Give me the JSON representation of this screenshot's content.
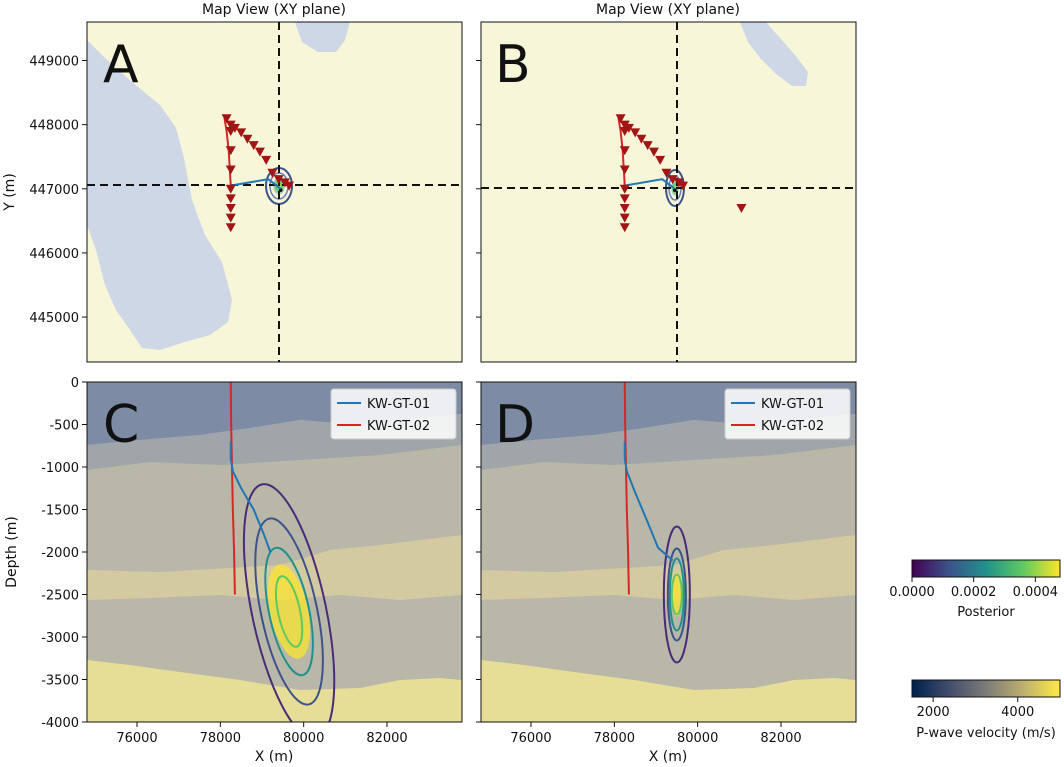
{
  "figure": {
    "panels": [
      {
        "letter": "A",
        "title": "Map View (XY plane)"
      },
      {
        "letter": "B",
        "title": "Map View (XY plane)"
      },
      {
        "letter": "C",
        "title": ""
      },
      {
        "letter": "D",
        "title": ""
      }
    ]
  },
  "colors": {
    "well1": "#1f77b4",
    "well2": "#d62728",
    "station": "#a31515",
    "crosshair": "#111111",
    "map_light": "#f7f6d8",
    "map_blue": "#cdd7e6"
  },
  "chart_data": [
    {
      "panel": "A",
      "type": "scatter",
      "view": "map",
      "title": "Map View (XY plane)",
      "xlabel": "",
      "ylabel": "Y (m)",
      "xlim": [
        74800,
        83800
      ],
      "ylim": [
        444300,
        449600
      ],
      "yticks": [
        445000,
        446000,
        447000,
        448000,
        449000
      ],
      "crosshair": {
        "x": 79450,
        "y": 447000
      },
      "posterior_peak": {
        "x": 79450,
        "y": 446980
      },
      "wells": {
        "KW-GT-01": {
          "x": [
            78250,
            79150,
            79450
          ],
          "y": [
            447050,
            447150,
            447000
          ]
        },
        "KW-GT-02": {
          "x": [
            78250,
            78200,
            78150,
            78100
          ],
          "y": [
            447050,
            447600,
            447900,
            448100
          ]
        }
      },
      "stations": {
        "x": [
          78150,
          78250,
          78350,
          78500,
          78650,
          78800,
          78950,
          79100,
          79250,
          79400,
          79550,
          79650,
          78250,
          78250,
          78250,
          78250,
          78250,
          78250,
          78250,
          78250
        ],
        "y": [
          448100,
          448000,
          447950,
          447880,
          447780,
          447680,
          447580,
          447450,
          447250,
          447150,
          447100,
          447050,
          447900,
          447600,
          447300,
          447000,
          446850,
          446700,
          446550,
          446400
        ]
      }
    },
    {
      "panel": "B",
      "type": "scatter",
      "view": "map",
      "title": "Map View (XY plane)",
      "xlabel": "",
      "ylabel": "",
      "xlim": [
        74800,
        83800
      ],
      "ylim": [
        444300,
        449600
      ],
      "yticks": [
        445000,
        446000,
        447000,
        448000,
        449000
      ],
      "crosshair": {
        "x": 79450,
        "y": 446950
      },
      "posterior_peak": {
        "x": 79450,
        "y": 446980
      },
      "wells": {
        "KW-GT-01": {
          "x": [
            78250,
            79150,
            79450
          ],
          "y": [
            447050,
            447150,
            447000
          ]
        },
        "KW-GT-02": {
          "x": [
            78250,
            78200,
            78150,
            78100
          ],
          "y": [
            447050,
            447600,
            447900,
            448100
          ]
        }
      },
      "stations": {
        "x": [
          78150,
          78250,
          78350,
          78500,
          78650,
          78800,
          78950,
          79100,
          79250,
          79400,
          79550,
          79650,
          78250,
          78250,
          78250,
          78250,
          78250,
          78250,
          78250,
          78250,
          81050
        ],
        "y": [
          448100,
          448000,
          447950,
          447880,
          447780,
          447680,
          447580,
          447450,
          447250,
          447150,
          447100,
          447050,
          447900,
          447600,
          447300,
          447000,
          446850,
          446700,
          446550,
          446400,
          446700
        ]
      }
    },
    {
      "panel": "C",
      "type": "line",
      "view": "section",
      "title": "",
      "xlabel": "X (m)",
      "ylabel": "Depth (m)",
      "xlim": [
        74800,
        83800
      ],
      "ylim": [
        -4000,
        0
      ],
      "xticks": [
        76000,
        78000,
        80000,
        82000
      ],
      "yticks": [
        0,
        -500,
        -1000,
        -1500,
        -2000,
        -2500,
        -3000,
        -3500,
        -4000
      ],
      "legend": [
        "KW-GT-01",
        "KW-GT-02"
      ],
      "series": [
        {
          "name": "KW-GT-01",
          "x": [
            78250,
            78250,
            78300,
            78500,
            78800,
            79050,
            79200
          ],
          "y": [
            -700,
            -900,
            -1050,
            -1250,
            -1500,
            -1800,
            -2000
          ]
        },
        {
          "name": "KW-GT-02",
          "x": [
            78250,
            78260,
            78280,
            78300,
            78330,
            78350
          ],
          "y": [
            0,
            -500,
            -1000,
            -1500,
            -2000,
            -2500
          ]
        }
      ],
      "posterior": {
        "center": [
          79650,
          -2700
        ],
        "tilt_deg": -12,
        "radius_x": [
          250,
          420,
          600,
          800
        ],
        "radius_y": [
          650,
          1000,
          1400,
          1900
        ]
      }
    },
    {
      "panel": "D",
      "type": "line",
      "view": "section",
      "title": "",
      "xlabel": "X (m)",
      "ylabel": "",
      "xlim": [
        74800,
        83800
      ],
      "ylim": [
        -4000,
        0
      ],
      "xticks": [
        76000,
        78000,
        80000,
        82000
      ],
      "yticks": [
        0,
        -500,
        -1000,
        -1500,
        -2000,
        -2500,
        -3000,
        -3500,
        -4000
      ],
      "legend": [
        "KW-GT-01",
        "KW-GT-02"
      ],
      "series": [
        {
          "name": "KW-GT-01",
          "x": [
            78250,
            78250,
            78300,
            78500,
            78800,
            79050,
            79400
          ],
          "y": [
            -700,
            -900,
            -1050,
            -1300,
            -1650,
            -1950,
            -2100
          ]
        },
        {
          "name": "KW-GT-02",
          "x": [
            78250,
            78260,
            78280,
            78300,
            78330,
            78350
          ],
          "y": [
            0,
            -500,
            -1000,
            -1500,
            -2000,
            -2500
          ]
        }
      ],
      "posterior": {
        "center": [
          79500,
          -2500
        ],
        "tilt_deg": 0,
        "radius_x": [
          100,
          170,
          250,
          330
        ],
        "radius_y": [
          400,
          600,
          800,
          950
        ]
      }
    },
    {
      "type": "colorbar",
      "label": "Posterior",
      "range": [
        0.0,
        0.00048
      ],
      "tick_labels": [
        "0.0000",
        "0.0002",
        "0.0004"
      ],
      "tick_values": [
        0.0,
        0.0002,
        0.0004
      ]
    },
    {
      "type": "colorbar",
      "label": "P-wave velocity (m/s)",
      "range": [
        1500,
        5000
      ],
      "tick_labels": [
        "2000",
        "4000"
      ],
      "tick_values": [
        2000,
        4000
      ]
    }
  ]
}
